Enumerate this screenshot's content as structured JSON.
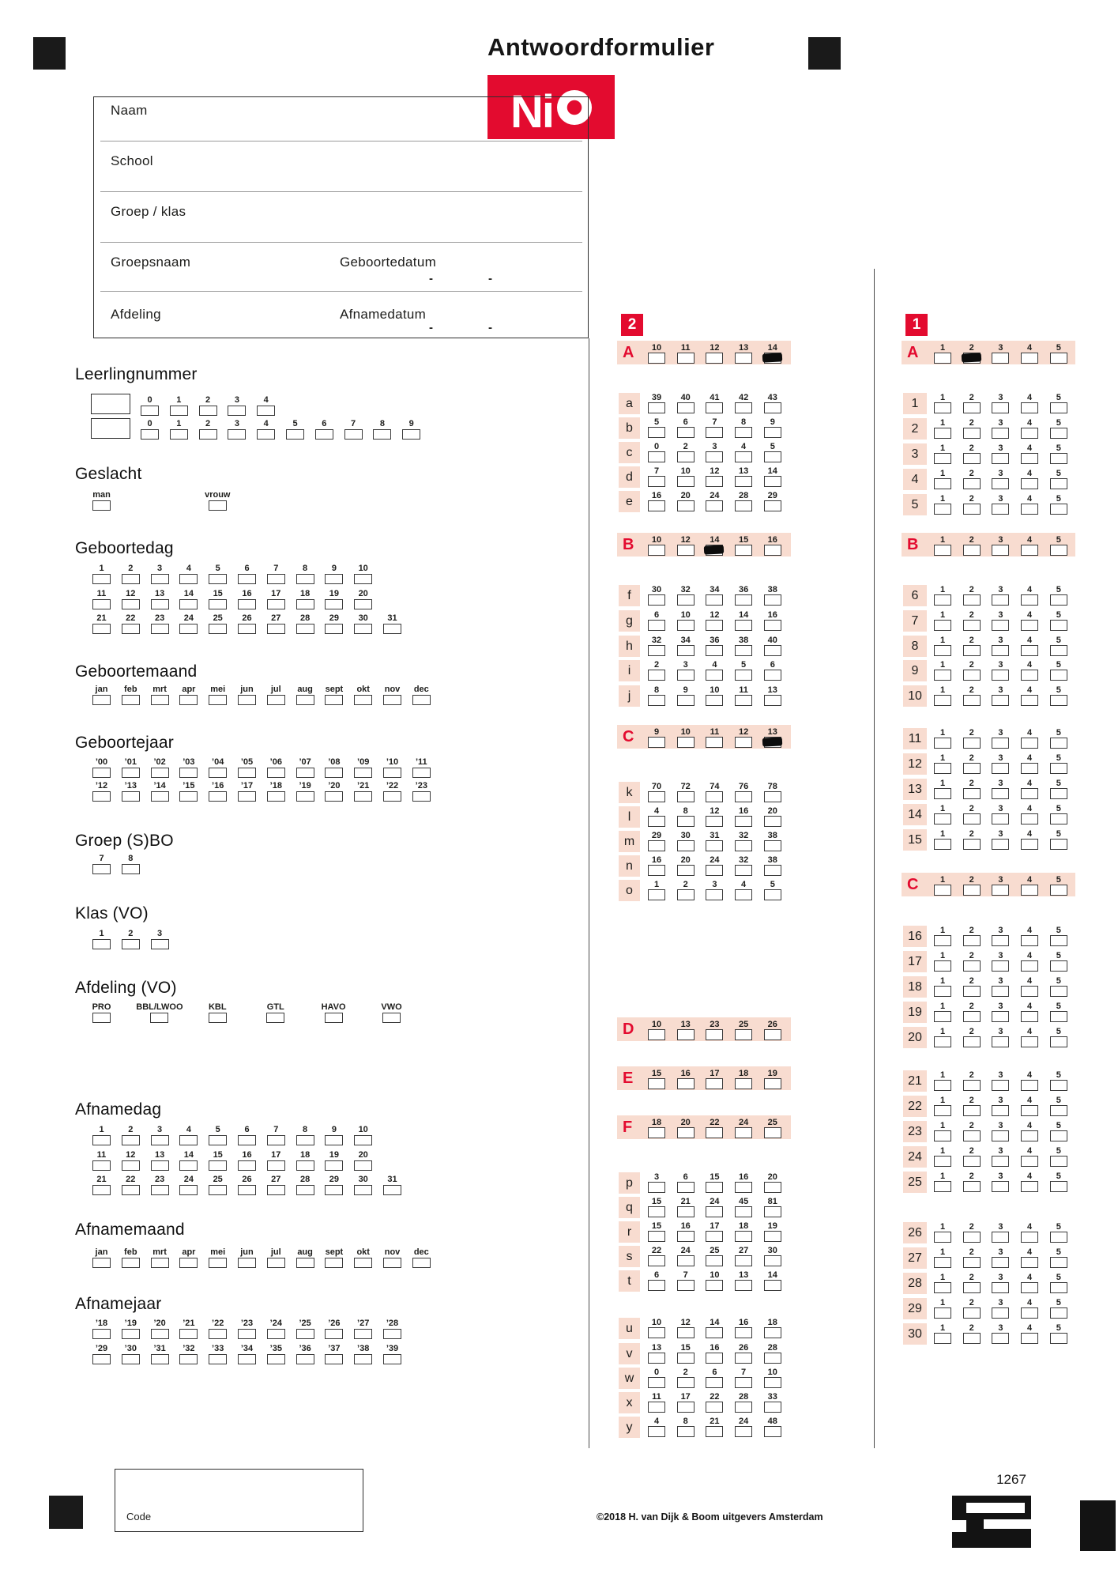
{
  "header": {
    "title": "Antwoordformulier",
    "logo_text": "NiO",
    "logo_ni": "Ni"
  },
  "colors": {
    "accent_red": "#e30b2f",
    "band_pink": "#f8dcd0"
  },
  "info_box": {
    "dash": "-",
    "rows": [
      {
        "label": "Naam"
      },
      {
        "label": "School"
      },
      {
        "label": "Groep / klas"
      },
      {
        "label": "Groepsnaam",
        "label2": "Geboortedatum"
      },
      {
        "label": "Afdeling",
        "label2": "Afnamedatum"
      }
    ]
  },
  "left": [
    {
      "title": "Leerlingnummer",
      "rows": [
        [
          "0",
          "1",
          "2",
          "3",
          "4"
        ],
        [
          "0",
          "1",
          "2",
          "3",
          "4",
          "5",
          "6",
          "7",
          "8",
          "9"
        ]
      ]
    },
    {
      "title": "Geslacht",
      "rows": [
        [
          "man",
          "vrouw"
        ]
      ]
    },
    {
      "title": "Geboortedag",
      "rows": [
        [
          "1",
          "2",
          "3",
          "4",
          "5",
          "6",
          "7",
          "8",
          "9",
          "10"
        ],
        [
          "11",
          "12",
          "13",
          "14",
          "15",
          "16",
          "17",
          "18",
          "19",
          "20"
        ],
        [
          "21",
          "22",
          "23",
          "24",
          "25",
          "26",
          "27",
          "28",
          "29",
          "30",
          "31"
        ]
      ]
    },
    {
      "title": "Geboortemaand",
      "rows": [
        [
          "jan",
          "feb",
          "mrt",
          "apr",
          "mei",
          "jun",
          "jul",
          "aug",
          "sept",
          "okt",
          "nov",
          "dec"
        ]
      ]
    },
    {
      "title": "Geboortejaar",
      "rows": [
        [
          "’00",
          "’01",
          "’02",
          "’03",
          "’04",
          "’05",
          "’06",
          "’07",
          "’08",
          "’09",
          "’10",
          "’11"
        ],
        [
          "’12",
          "’13",
          "’14",
          "’15",
          "’16",
          "’17",
          "’18",
          "’19",
          "’20",
          "’21",
          "’22",
          "’23"
        ]
      ]
    },
    {
      "title": "Groep (S)BO",
      "rows": [
        [
          "7",
          "8"
        ]
      ]
    },
    {
      "title": "Klas (VO)",
      "rows": [
        [
          "1",
          "2",
          "3"
        ]
      ]
    },
    {
      "title": "Afdeling (VO)",
      "rows": [
        [
          "PRO",
          "BBL/LWOO",
          "KBL",
          "GTL",
          "HAVO",
          "VWO"
        ]
      ]
    },
    {
      "title": "Afnamedag",
      "rows": [
        [
          "1",
          "2",
          "3",
          "4",
          "5",
          "6",
          "7",
          "8",
          "9",
          "10"
        ],
        [
          "11",
          "12",
          "13",
          "14",
          "15",
          "16",
          "17",
          "18",
          "19",
          "20"
        ],
        [
          "21",
          "22",
          "23",
          "24",
          "25",
          "26",
          "27",
          "28",
          "29",
          "30",
          "31"
        ]
      ]
    },
    {
      "title": "Afnamemaand",
      "rows": [
        [
          "jan",
          "feb",
          "mrt",
          "apr",
          "mei",
          "jun",
          "jul",
          "aug",
          "sept",
          "okt",
          "nov",
          "dec"
        ]
      ]
    },
    {
      "title": "Afnamejaar",
      "rows": [
        [
          "’18",
          "’19",
          "’20",
          "’21",
          "’22",
          "’23",
          "’24",
          "’25",
          "’26",
          "’27",
          "’28"
        ],
        [
          "’29",
          "’30",
          "’31",
          "’32",
          "’33",
          "’34",
          "’35",
          "’36",
          "’37",
          "’38",
          "’39"
        ]
      ]
    }
  ],
  "section2": {
    "badge": "2",
    "rows": [
      {
        "label": "A",
        "band": true,
        "options": [
          "10",
          "11",
          "12",
          "13",
          "14"
        ],
        "marked": "14"
      },
      {
        "label": "a",
        "options": [
          "39",
          "40",
          "41",
          "42",
          "43"
        ]
      },
      {
        "label": "b",
        "options": [
          "5",
          "6",
          "7",
          "8",
          "9"
        ]
      },
      {
        "label": "c",
        "options": [
          "0",
          "2",
          "3",
          "4",
          "5"
        ]
      },
      {
        "label": "d",
        "options": [
          "7",
          "10",
          "12",
          "13",
          "14"
        ]
      },
      {
        "label": "e",
        "options": [
          "16",
          "20",
          "24",
          "28",
          "29"
        ]
      },
      {
        "label": "B",
        "band": true,
        "options": [
          "10",
          "12",
          "14",
          "15",
          "16"
        ],
        "marked": "14"
      },
      {
        "label": "f",
        "options": [
          "30",
          "32",
          "34",
          "36",
          "38"
        ]
      },
      {
        "label": "g",
        "options": [
          "6",
          "10",
          "12",
          "14",
          "16"
        ]
      },
      {
        "label": "h",
        "options": [
          "32",
          "34",
          "36",
          "38",
          "40"
        ]
      },
      {
        "label": "i",
        "options": [
          "2",
          "3",
          "4",
          "5",
          "6"
        ]
      },
      {
        "label": "j",
        "options": [
          "8",
          "9",
          "10",
          "11",
          "13"
        ]
      },
      {
        "label": "C",
        "band": true,
        "options": [
          "9",
          "10",
          "11",
          "12",
          "13"
        ],
        "marked": "13"
      },
      {
        "label": "k",
        "options": [
          "70",
          "72",
          "74",
          "76",
          "78"
        ]
      },
      {
        "label": "l",
        "options": [
          "4",
          "8",
          "12",
          "16",
          "20"
        ]
      },
      {
        "label": "m",
        "options": [
          "29",
          "30",
          "31",
          "32",
          "38"
        ]
      },
      {
        "label": "n",
        "options": [
          "16",
          "20",
          "24",
          "32",
          "38"
        ]
      },
      {
        "label": "o",
        "options": [
          "1",
          "2",
          "3",
          "4",
          "5"
        ]
      },
      {
        "label": "D",
        "band": true,
        "options": [
          "10",
          "13",
          "23",
          "25",
          "26"
        ]
      },
      {
        "label": "E",
        "band": true,
        "options": [
          "15",
          "16",
          "17",
          "18",
          "19"
        ]
      },
      {
        "label": "F",
        "band": true,
        "options": [
          "18",
          "20",
          "22",
          "24",
          "25"
        ]
      },
      {
        "label": "p",
        "options": [
          "3",
          "6",
          "15",
          "16",
          "20"
        ]
      },
      {
        "label": "q",
        "options": [
          "15",
          "21",
          "24",
          "45",
          "81"
        ]
      },
      {
        "label": "r",
        "options": [
          "15",
          "16",
          "17",
          "18",
          "19"
        ]
      },
      {
        "label": "s",
        "options": [
          "22",
          "24",
          "25",
          "27",
          "30"
        ]
      },
      {
        "label": "t",
        "options": [
          "6",
          "7",
          "10",
          "13",
          "14"
        ]
      },
      {
        "label": "u",
        "options": [
          "10",
          "12",
          "14",
          "16",
          "18"
        ]
      },
      {
        "label": "v",
        "options": [
          "13",
          "15",
          "16",
          "26",
          "28"
        ]
      },
      {
        "label": "w",
        "options": [
          "0",
          "2",
          "6",
          "7",
          "10"
        ]
      },
      {
        "label": "x",
        "options": [
          "11",
          "17",
          "22",
          "28",
          "33"
        ]
      },
      {
        "label": "y",
        "options": [
          "4",
          "8",
          "21",
          "24",
          "48"
        ]
      }
    ]
  },
  "section1": {
    "badge": "1",
    "rows": [
      {
        "label": "A",
        "band": true,
        "options": [
          "1",
          "2",
          "3",
          "4",
          "5"
        ],
        "marked": "2"
      },
      {
        "label": "1",
        "options": [
          "1",
          "2",
          "3",
          "4",
          "5"
        ]
      },
      {
        "label": "2",
        "options": [
          "1",
          "2",
          "3",
          "4",
          "5"
        ]
      },
      {
        "label": "3",
        "options": [
          "1",
          "2",
          "3",
          "4",
          "5"
        ]
      },
      {
        "label": "4",
        "options": [
          "1",
          "2",
          "3",
          "4",
          "5"
        ]
      },
      {
        "label": "5",
        "options": [
          "1",
          "2",
          "3",
          "4",
          "5"
        ]
      },
      {
        "label": "B",
        "band": true,
        "options": [
          "1",
          "2",
          "3",
          "4",
          "5"
        ]
      },
      {
        "label": "6",
        "options": [
          "1",
          "2",
          "3",
          "4",
          "5"
        ]
      },
      {
        "label": "7",
        "options": [
          "1",
          "2",
          "3",
          "4",
          "5"
        ]
      },
      {
        "label": "8",
        "options": [
          "1",
          "2",
          "3",
          "4",
          "5"
        ]
      },
      {
        "label": "9",
        "options": [
          "1",
          "2",
          "3",
          "4",
          "5"
        ]
      },
      {
        "label": "10",
        "options": [
          "1",
          "2",
          "3",
          "4",
          "5"
        ]
      },
      {
        "label": "11",
        "options": [
          "1",
          "2",
          "3",
          "4",
          "5"
        ]
      },
      {
        "label": "12",
        "options": [
          "1",
          "2",
          "3",
          "4",
          "5"
        ]
      },
      {
        "label": "13",
        "options": [
          "1",
          "2",
          "3",
          "4",
          "5"
        ]
      },
      {
        "label": "14",
        "options": [
          "1",
          "2",
          "3",
          "4",
          "5"
        ]
      },
      {
        "label": "15",
        "options": [
          "1",
          "2",
          "3",
          "4",
          "5"
        ]
      },
      {
        "label": "C",
        "band": true,
        "options": [
          "1",
          "2",
          "3",
          "4",
          "5"
        ]
      },
      {
        "label": "16",
        "options": [
          "1",
          "2",
          "3",
          "4",
          "5"
        ]
      },
      {
        "label": "17",
        "options": [
          "1",
          "2",
          "3",
          "4",
          "5"
        ]
      },
      {
        "label": "18",
        "options": [
          "1",
          "2",
          "3",
          "4",
          "5"
        ]
      },
      {
        "label": "19",
        "options": [
          "1",
          "2",
          "3",
          "4",
          "5"
        ]
      },
      {
        "label": "20",
        "options": [
          "1",
          "2",
          "3",
          "4",
          "5"
        ]
      },
      {
        "label": "21",
        "options": [
          "1",
          "2",
          "3",
          "4",
          "5"
        ]
      },
      {
        "label": "22",
        "options": [
          "1",
          "2",
          "3",
          "4",
          "5"
        ]
      },
      {
        "label": "23",
        "options": [
          "1",
          "2",
          "3",
          "4",
          "5"
        ]
      },
      {
        "label": "24",
        "options": [
          "1",
          "2",
          "3",
          "4",
          "5"
        ]
      },
      {
        "label": "25",
        "options": [
          "1",
          "2",
          "3",
          "4",
          "5"
        ]
      },
      {
        "label": "26",
        "options": [
          "1",
          "2",
          "3",
          "4",
          "5"
        ]
      },
      {
        "label": "27",
        "options": [
          "1",
          "2",
          "3",
          "4",
          "5"
        ]
      },
      {
        "label": "28",
        "options": [
          "1",
          "2",
          "3",
          "4",
          "5"
        ]
      },
      {
        "label": "29",
        "options": [
          "1",
          "2",
          "3",
          "4",
          "5"
        ]
      },
      {
        "label": "30",
        "options": [
          "1",
          "2",
          "3",
          "4",
          "5"
        ]
      }
    ]
  },
  "footer": {
    "code_label": "Code",
    "copyright": "©2018 H. van Dijk & Boom uitgevers Amsterdam",
    "form_number": "1267"
  }
}
